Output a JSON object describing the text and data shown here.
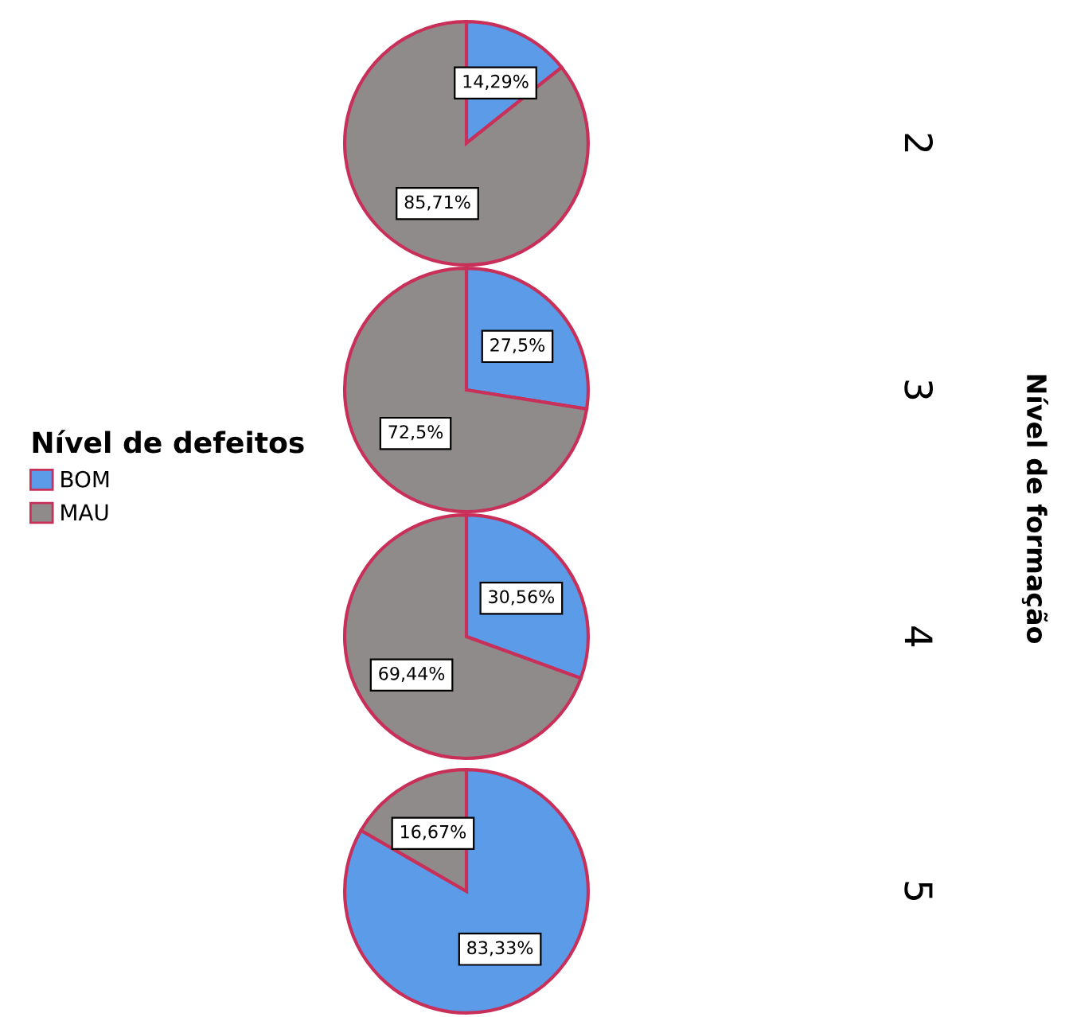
{
  "chart_data": [
    {
      "type": "pie",
      "title": "2",
      "categories": [
        "BOM",
        "MAU"
      ],
      "values": [
        14.29,
        85.71
      ],
      "value_labels": [
        "14,29%",
        "85,71%"
      ],
      "colors": [
        "#5b9be8",
        "#8f8b8b"
      ],
      "legend": "left",
      "legend_title": "Nível de defeitos",
      "y2label": "Nível de formação"
    },
    {
      "type": "pie",
      "title": "3",
      "categories": [
        null,
        null
      ],
      "values": [
        27.5,
        72.5
      ],
      "value_labels": [
        "27,5%",
        "72,5%"
      ],
      "colors": [
        "#5b9be8",
        "#8f8b8b"
      ]
    },
    {
      "type": "pie",
      "title": "4",
      "categories": [
        null,
        null
      ],
      "values": [
        30.56,
        69.44
      ],
      "value_labels": [
        "30,56%",
        "69,44%"
      ],
      "colors": [
        "#5b9be8",
        "#8f8b8b"
      ]
    },
    {
      "type": "pie",
      "title": "5",
      "categories": [
        null,
        null
      ],
      "values": [
        83.33,
        16.67
      ],
      "value_labels": [
        "83,33%",
        "16,67%"
      ],
      "colors": [
        "#5b9be8",
        "#8f8b8b"
      ]
    }
  ]
}
